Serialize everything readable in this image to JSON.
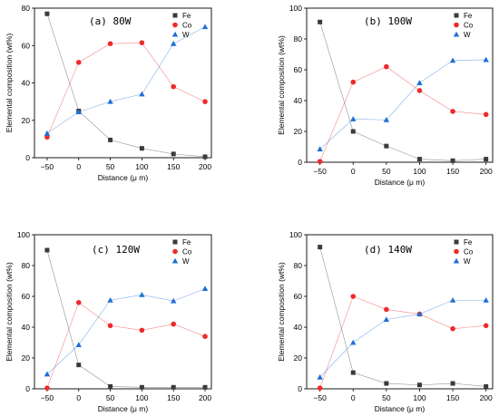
{
  "colors": {
    "Fe": "#3a3a3a",
    "Co": "#ee2a2a",
    "W": "#1f6fd6"
  },
  "chart_data": [
    {
      "type": "line",
      "title": "(a) 80W",
      "xlabel": "Distance (μ m)",
      "ylabel": "Elemental composition (wt%)",
      "x": [
        -50,
        0,
        50,
        100,
        150,
        200
      ],
      "xlim": [
        -70,
        210
      ],
      "ylim": [
        0,
        80
      ],
      "yticks": [
        0,
        20,
        40,
        60,
        80
      ],
      "legend_position": "top-right",
      "series": [
        {
          "name": "Fe",
          "marker": "square",
          "values": [
            77,
            25,
            9.5,
            5,
            2,
            0.5
          ]
        },
        {
          "name": "Co",
          "marker": "circle",
          "values": [
            11,
            51,
            61,
            61.5,
            38,
            30
          ]
        },
        {
          "name": "W",
          "marker": "triangle",
          "values": [
            13,
            24.5,
            30,
            34,
            61,
            70
          ]
        }
      ]
    },
    {
      "type": "line",
      "title": "(b) 100W",
      "xlabel": "Distance (μ m)",
      "ylabel": "Elemental composition (wt%)",
      "x": [
        -50,
        0,
        50,
        100,
        150,
        200
      ],
      "xlim": [
        -70,
        210
      ],
      "ylim": [
        0,
        100
      ],
      "yticks": [
        0,
        20,
        40,
        60,
        80,
        100
      ],
      "legend_position": "top-right",
      "series": [
        {
          "name": "Fe",
          "marker": "square",
          "values": [
            91,
            20,
            10.5,
            2,
            1,
            2
          ]
        },
        {
          "name": "Co",
          "marker": "circle",
          "values": [
            0.5,
            52,
            62,
            46.5,
            33,
            31
          ]
        },
        {
          "name": "W",
          "marker": "triangle",
          "values": [
            8.5,
            28,
            27.5,
            51.5,
            66,
            66.5
          ]
        }
      ]
    },
    {
      "type": "line",
      "title": "(c) 120W",
      "xlabel": "Distance (μ m)",
      "ylabel": "Elemental composition (wt%)",
      "x": [
        -50,
        0,
        50,
        100,
        150,
        200
      ],
      "xlim": [
        -70,
        210
      ],
      "ylim": [
        0,
        100
      ],
      "yticks": [
        0,
        20,
        40,
        60,
        80,
        100
      ],
      "legend_position": "top-right",
      "series": [
        {
          "name": "Fe",
          "marker": "square",
          "values": [
            90,
            15.5,
            1.5,
            1,
            1,
            1
          ]
        },
        {
          "name": "Co",
          "marker": "circle",
          "values": [
            0.5,
            56,
            41,
            38,
            42,
            34
          ]
        },
        {
          "name": "W",
          "marker": "triangle",
          "values": [
            9.5,
            28.5,
            57.5,
            61,
            57,
            65
          ]
        }
      ]
    },
    {
      "type": "line",
      "title": "(d) 140W",
      "xlabel": "Distance (μ m)",
      "ylabel": "Elemental composition (wt%)",
      "x": [
        -50,
        0,
        50,
        100,
        150,
        200
      ],
      "xlim": [
        -70,
        210
      ],
      "ylim": [
        0,
        100
      ],
      "yticks": [
        0,
        20,
        40,
        60,
        80,
        100
      ],
      "legend_position": "top-right",
      "series": [
        {
          "name": "Fe",
          "marker": "square",
          "values": [
            92,
            10.5,
            3.5,
            2.5,
            3.5,
            1.5
          ]
        },
        {
          "name": "Co",
          "marker": "circle",
          "values": [
            0.5,
            60,
            51.5,
            48.5,
            39,
            41
          ]
        },
        {
          "name": "W",
          "marker": "triangle",
          "values": [
            7.5,
            30,
            45,
            48.5,
            57.5,
            57.5
          ]
        }
      ]
    }
  ]
}
